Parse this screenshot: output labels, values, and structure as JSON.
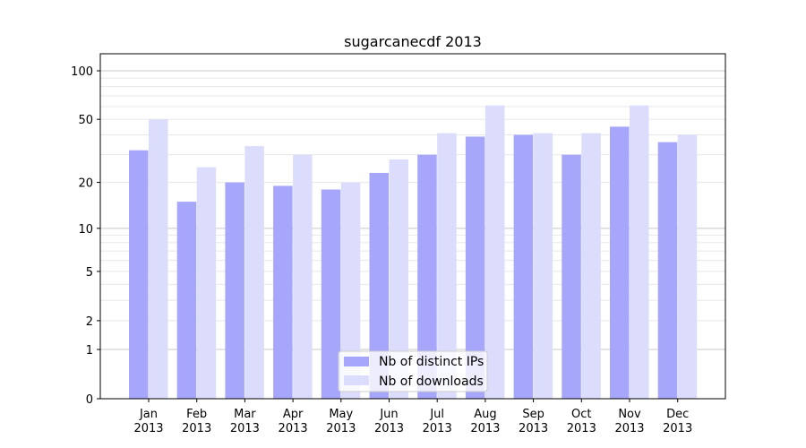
{
  "chart_data": {
    "type": "bar",
    "title": "sugarcanecdf 2013",
    "xlabel": "",
    "ylabel": "",
    "yscale": "log(1+x)",
    "ylim": [
      0,
      120
    ],
    "yticks": [
      0,
      1,
      2,
      5,
      10,
      20,
      50,
      100
    ],
    "categories": [
      "Jan\n2013",
      "Feb\n2013",
      "Mar\n2013",
      "Apr\n2013",
      "May\n2013",
      "Jun\n2013",
      "Jul\n2013",
      "Aug\n2013",
      "Sep\n2013",
      "Oct\n2013",
      "Nov\n2013",
      "Dec\n2013"
    ],
    "series": [
      {
        "name": "Nb of distinct IPs",
        "color": "#a6a6fb",
        "values": [
          32,
          15,
          20,
          19,
          18,
          23,
          30,
          39,
          40,
          30,
          45,
          36
        ]
      },
      {
        "name": "Nb of downloads",
        "color": "#dcdcfd",
        "values": [
          50,
          25,
          34,
          30,
          20,
          28,
          41,
          61,
          41,
          41,
          61,
          40
        ]
      }
    ],
    "grid": true,
    "legend": "bottom-center"
  }
}
